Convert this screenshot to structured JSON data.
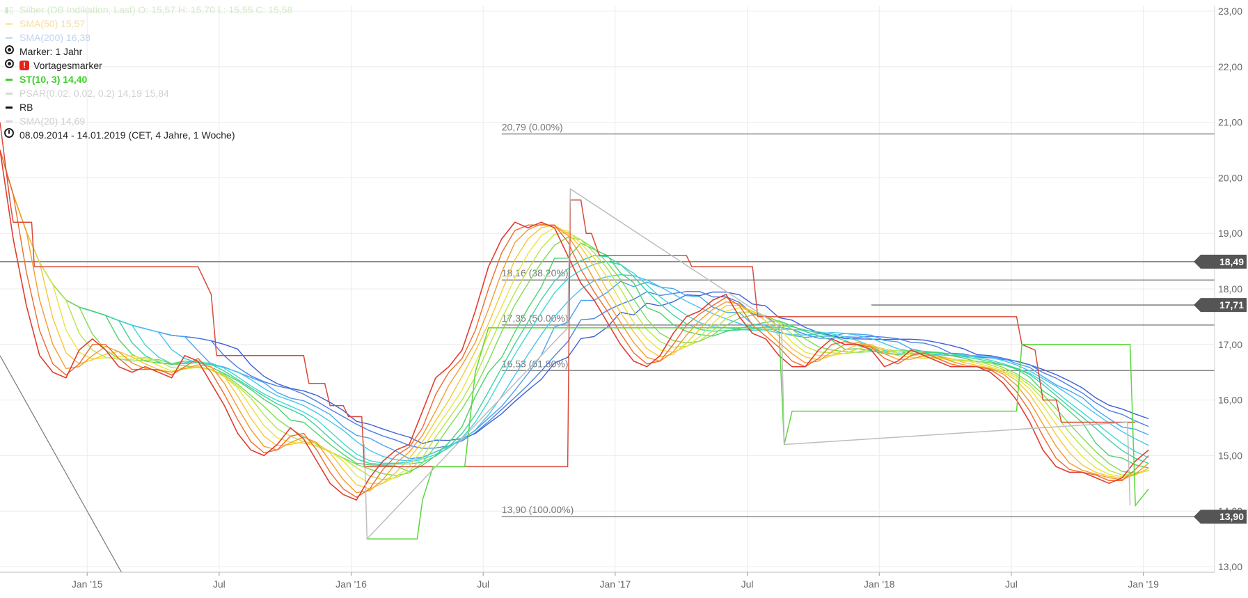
{
  "legend": {
    "instrument": {
      "text": "Silber (DB Indikation, Last)  O: 15,57  H: 15,70  L: 15,55  C: 15,58",
      "icon": "candle-icon",
      "color": "#9fd48a"
    },
    "sma50": {
      "text": "SMA(50)  15,57",
      "color": "#f2d24b"
    },
    "sma200": {
      "text": "SMA(200)  16,38",
      "color": "#8fb8e8"
    },
    "marker": {
      "text": "Marker: 1 Jahr",
      "icon": "radio-icon"
    },
    "vortag": {
      "text": "Vortagesmarker",
      "icon": "alert-icon",
      "icon_char": "!"
    },
    "st": {
      "text": "ST(10, 3)  14,40",
      "color": "#3ecf2a"
    },
    "psar": {
      "text": "PSAR(0.02, 0.02, 0.2)  14,19  15,84",
      "color": "#aaaaaa"
    },
    "rb": {
      "text": "RB",
      "color": "#111111"
    },
    "sma20": {
      "text": "SMA(20)  14,69",
      "color": "#aaaaaa"
    },
    "range": {
      "text": "08.09.2014 - 14.01.2019   (CET, 4 Jahre, 1 Woche)",
      "icon": "clock-icon"
    }
  },
  "chart_data": {
    "type": "line",
    "title": "Silber (DB Indikation, Last)",
    "x_tick_labels": [
      {
        "label": "Jan '15",
        "t": 0.33
      },
      {
        "label": "Jul",
        "t": 0.83
      },
      {
        "label": "Jan '16",
        "t": 1.33
      },
      {
        "label": "Jul",
        "t": 1.83
      },
      {
        "label": "Jan '17",
        "t": 2.33
      },
      {
        "label": "Jul",
        "t": 2.83
      },
      {
        "label": "Jan '18",
        "t": 3.33
      },
      {
        "label": "Jul",
        "t": 3.83
      },
      {
        "label": "Jan '19",
        "t": 4.33
      }
    ],
    "x_range": [
      0,
      4.6
    ],
    "ylim": [
      12.9,
      23.1
    ],
    "y_ticks": [
      "13,00",
      "14,00",
      "15,00",
      "16,00",
      "17,00",
      "18,00",
      "19,00",
      "20,00",
      "21,00",
      "22,00",
      "23,00"
    ],
    "grid": true,
    "price_badges": [
      "18,49",
      "17,71",
      "13,90"
    ],
    "fibonacci": [
      {
        "label": "20,79 (0.00%)",
        "value": 20.79
      },
      {
        "label": "18,16 (38.20%)",
        "value": 18.16
      },
      {
        "label": "17,35 (50.00%)",
        "value": 17.35
      },
      {
        "label": "16,53 (61.80%)",
        "value": 16.53
      },
      {
        "label": "13,90 (100.00%)",
        "value": 13.9
      }
    ],
    "horizontal_lines": [
      18.49,
      17.71
    ],
    "series": [
      {
        "name": "price (fastest MA)",
        "color": "#e03c31",
        "x": [
          0,
          0.05,
          0.1,
          0.15,
          0.2,
          0.25,
          0.3,
          0.35,
          0.4,
          0.45,
          0.5,
          0.55,
          0.6,
          0.65,
          0.7,
          0.75,
          0.8,
          0.85,
          0.9,
          0.95,
          1.0,
          1.05,
          1.1,
          1.15,
          1.2,
          1.25,
          1.3,
          1.35,
          1.4,
          1.45,
          1.5,
          1.55,
          1.6,
          1.65,
          1.7,
          1.75,
          1.8,
          1.85,
          1.9,
          1.95,
          2.0,
          2.05,
          2.1,
          2.15,
          2.2,
          2.25,
          2.3,
          2.35,
          2.4,
          2.45,
          2.5,
          2.55,
          2.6,
          2.65,
          2.7,
          2.75,
          2.8,
          2.85,
          2.9,
          2.95,
          3.0,
          3.05,
          3.1,
          3.15,
          3.2,
          3.25,
          3.3,
          3.35,
          3.4,
          3.45,
          3.5,
          3.55,
          3.6,
          3.65,
          3.7,
          3.75,
          3.8,
          3.85,
          3.9,
          3.95,
          4.0,
          4.05,
          4.1,
          4.15,
          4.2,
          4.25,
          4.3,
          4.35
        ],
        "y": [
          20.5,
          18.9,
          17.7,
          16.8,
          16.5,
          16.4,
          16.9,
          17.1,
          16.9,
          16.6,
          16.5,
          16.6,
          16.5,
          16.4,
          16.8,
          16.7,
          16.3,
          15.9,
          15.4,
          15.1,
          15.0,
          15.2,
          15.5,
          15.3,
          14.9,
          14.5,
          14.3,
          14.2,
          14.6,
          14.9,
          15.1,
          15.2,
          15.8,
          16.4,
          16.6,
          16.9,
          17.6,
          18.4,
          18.9,
          19.2,
          19.1,
          19.2,
          19.1,
          18.6,
          18.1,
          17.8,
          17.4,
          17.0,
          16.7,
          16.6,
          16.8,
          17.2,
          17.5,
          17.6,
          17.8,
          17.9,
          17.5,
          17.2,
          17.1,
          16.8,
          16.6,
          16.6,
          16.9,
          17.1,
          17.0,
          17.0,
          16.9,
          16.6,
          16.7,
          16.9,
          16.8,
          16.7,
          16.6,
          16.6,
          16.6,
          16.5,
          16.3,
          16.0,
          15.6,
          15.1,
          14.8,
          14.7,
          14.7,
          14.6,
          14.5,
          14.6,
          14.9,
          15.1
        ]
      },
      {
        "name": "MA 2",
        "color": "#ee6a2c",
        "span": 0.08
      },
      {
        "name": "MA 3",
        "color": "#f59a2d",
        "span": 0.12
      },
      {
        "name": "MA 4",
        "color": "#f8c63a",
        "span": 0.17
      },
      {
        "name": "MA 5",
        "color": "#e8e43e",
        "span": 0.22
      },
      {
        "name": "MA 6",
        "color": "#b8e44a",
        "span": 0.28
      },
      {
        "name": "MA 7",
        "color": "#7ddc55",
        "span": 0.34
      },
      {
        "name": "MA 8",
        "color": "#4dd26b",
        "span": 0.4
      },
      {
        "name": "MA 9",
        "color": "#3fd2a2",
        "span": 0.47
      },
      {
        "name": "MA 10",
        "color": "#3ed8d2",
        "span": 0.54
      },
      {
        "name": "MA 11",
        "color": "#47c6ec",
        "span": 0.62
      },
      {
        "name": "MA 12",
        "color": "#4aa3ee",
        "span": 0.7
      },
      {
        "name": "MA 13",
        "color": "#4a7fe6",
        "span": 0.8
      },
      {
        "name": "MA 14",
        "color": "#3e5fd8",
        "span": 0.9
      },
      {
        "name": "stop line",
        "color": "#d94a3a",
        "x": [
          0,
          0.04,
          0.05,
          0.12,
          0.13,
          0.75,
          0.78,
          0.8,
          0.82,
          1.15,
          1.17,
          1.23,
          1.25,
          1.3,
          1.32,
          1.37,
          1.38,
          2.15,
          2.16,
          2.2,
          2.22,
          2.24,
          2.27,
          2.33,
          2.35,
          2.6,
          2.62,
          2.85,
          2.87,
          3.85,
          3.87,
          3.92,
          3.95,
          4.0,
          4.02,
          4.3
        ],
        "y": [
          21.0,
          19.5,
          19.2,
          19.2,
          18.4,
          18.4,
          18.1,
          17.9,
          16.8,
          16.8,
          16.3,
          16.3,
          15.9,
          15.9,
          15.7,
          15.7,
          14.8,
          14.8,
          19.6,
          19.6,
          19.0,
          19.0,
          18.6,
          18.6,
          18.6,
          18.6,
          18.4,
          18.4,
          17.5,
          17.5,
          17.0,
          16.9,
          16.0,
          16.0,
          15.6,
          15.6
        ]
      },
      {
        "name": "ST(10, 3)",
        "color": "#58d83a",
        "x": [
          1.39,
          1.58,
          1.6,
          1.64,
          1.72,
          1.76,
          1.8,
          1.85,
          2.15,
          2.16,
          2.95,
          2.97,
          3.0,
          3.85,
          3.87,
          4.28,
          4.3,
          4.35
        ],
        "y": [
          13.5,
          13.5,
          14.2,
          14.8,
          14.8,
          14.8,
          16.5,
          17.3,
          17.3,
          17.3,
          17.3,
          15.2,
          15.8,
          15.8,
          17.0,
          17.0,
          14.1,
          14.4
        ]
      },
      {
        "name": "PSAR",
        "color": "#bdbdbd",
        "x": [
          1.38,
          1.39,
          2.15,
          2.16,
          2.96,
          2.97,
          4.27,
          4.28
        ],
        "y": [
          15.2,
          13.5,
          17.3,
          19.8,
          17.3,
          15.2,
          15.6,
          14.1
        ]
      }
    ]
  }
}
